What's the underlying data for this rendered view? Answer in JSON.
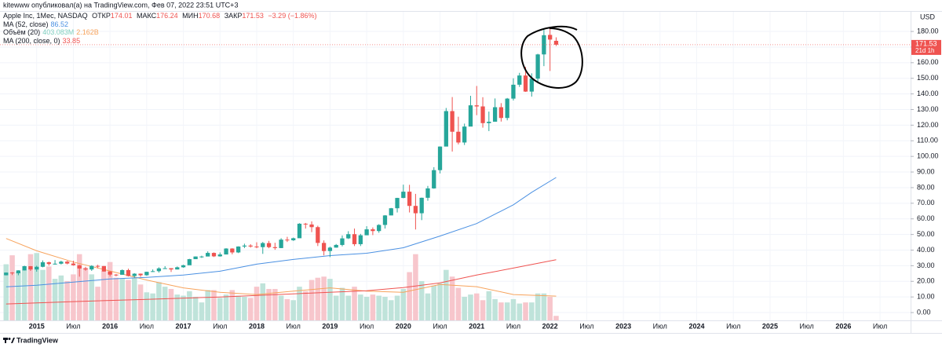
{
  "page": {
    "publisher": "kitewww опубликовал(а) на TradingView.com, Фев 07, 2022 23:51 UTC+3",
    "footer": "TradingView"
  },
  "chart_data": {
    "type": "candlestick",
    "title": "Apple Inc, 1Мес, NASDAQ",
    "ohlc_labels": [
      "ОТКР",
      "МАКС",
      "МИН",
      "ЗАКР"
    ],
    "change": "−3.29 (−1.86%)",
    "currency": "USD",
    "countdown": "21d 1h",
    "up_color": "#26a69a",
    "down_color": "#ef5350",
    "x": [
      "2014-08",
      "2014-09",
      "2014-10",
      "2014-11",
      "2014-12",
      "2015-01",
      "2015-02",
      "2015-03",
      "2015-04",
      "2015-05",
      "2015-06",
      "2015-07",
      "2015-08",
      "2015-09",
      "2015-10",
      "2015-11",
      "2015-12",
      "2016-01",
      "2016-02",
      "2016-03",
      "2016-04",
      "2016-05",
      "2016-06",
      "2016-07",
      "2016-08",
      "2016-09",
      "2016-10",
      "2016-11",
      "2016-12",
      "2017-01",
      "2017-02",
      "2017-03",
      "2017-04",
      "2017-05",
      "2017-06",
      "2017-07",
      "2017-08",
      "2017-09",
      "2017-10",
      "2017-11",
      "2017-12",
      "2018-01",
      "2018-02",
      "2018-03",
      "2018-04",
      "2018-05",
      "2018-06",
      "2018-07",
      "2018-08",
      "2018-09",
      "2018-10",
      "2018-11",
      "2018-12",
      "2019-01",
      "2019-02",
      "2019-03",
      "2019-04",
      "2019-05",
      "2019-06",
      "2019-07",
      "2019-08",
      "2019-09",
      "2019-10",
      "2019-11",
      "2019-12",
      "2020-01",
      "2020-02",
      "2020-03",
      "2020-04",
      "2020-05",
      "2020-06",
      "2020-07",
      "2020-08",
      "2020-09",
      "2020-10",
      "2020-11",
      "2020-12",
      "2021-01",
      "2021-02",
      "2021-03",
      "2021-04",
      "2021-05",
      "2021-06",
      "2021-07",
      "2021-08",
      "2021-09",
      "2021-10",
      "2021-11",
      "2021-12",
      "2022-01",
      "2022-02"
    ],
    "open": [
      23.9,
      25.6,
      25.2,
      27.0,
      29.7,
      27.6,
      29.3,
      32.2,
      31.1,
      31.3,
      32.6,
      31.4,
      30.3,
      28.2,
      27.6,
      29.9,
      29.8,
      26.3,
      24.3,
      24.2,
      27.2,
      23.4,
      24.9,
      23.9,
      26.1,
      26.5,
      28.3,
      28.4,
      27.6,
      29.0,
      30.3,
      34.2,
      35.9,
      35.9,
      38.2,
      36.0,
      37.2,
      41.0,
      38.5,
      42.3,
      42.9,
      42.3,
      41.9,
      44.5,
      41.9,
      41.3,
      46.7,
      46.3,
      47.6,
      56.9,
      56.4,
      54.7,
      44.6,
      39.4,
      41.6,
      43.3,
      47.5,
      50.2,
      43.8,
      49.5,
      53.3,
      52.2,
      56.1,
      62.2,
      66.8,
      73.4,
      77.4,
      68.3,
      63.6,
      73.5,
      79.5,
      91.2,
      106.3,
      129.0,
      115.8,
      108.9,
      119.1,
      132.7,
      132.0,
      121.3,
      122.2,
      131.5,
      124.6,
      137.0,
      145.9,
      151.8,
      141.5,
      149.8,
      165.3,
      177.8,
      174.01
    ],
    "high": [
      25.7,
      25.9,
      27.1,
      30.0,
      29.8,
      30.0,
      33.4,
      32.6,
      33.6,
      33.2,
      33.1,
      33.2,
      30.6,
      29.3,
      30.3,
      30.6,
      29.8,
      26.5,
      24.7,
      27.6,
      28.1,
      25.2,
      25.0,
      26.1,
      27.6,
      29.0,
      29.7,
      28.4,
      29.5,
      30.6,
      34.4,
      35.9,
      36.4,
      39.2,
      38.5,
      38.5,
      41.2,
      41.2,
      42.4,
      44.1,
      43.8,
      45.0,
      45.2,
      45.9,
      44.7,
      47.6,
      48.5,
      48.0,
      57.2,
      57.4,
      58.4,
      55.6,
      46.2,
      42.2,
      43.9,
      49.4,
      52.1,
      53.8,
      50.4,
      55.3,
      54.5,
      56.6,
      62.4,
      67.0,
      73.5,
      81.9,
      81.8,
      76.0,
      73.6,
      81.1,
      93.1,
      106.4,
      131.0,
      138.0,
      125.4,
      121.0,
      138.8,
      145.1,
      137.9,
      128.7,
      137.1,
      134.1,
      137.4,
      150.0,
      153.5,
      157.3,
      153.2,
      165.7,
      182.1,
      182.9,
      176.24
    ],
    "low": [
      23.8,
      24.0,
      23.9,
      26.9,
      26.7,
      26.2,
      29.0,
      30.1,
      30.7,
      30.8,
      30.9,
      30.0,
      23.0,
      26.8,
      26.7,
      28.4,
      26.2,
      23.1,
      23.2,
      24.2,
      23.1,
      22.4,
      22.9,
      23.6,
      26.0,
      25.6,
      28.0,
      26.0,
      27.6,
      28.7,
      31.9,
      34.6,
      35.0,
      36.1,
      35.6,
      35.8,
      37.4,
      37.3,
      38.1,
      41.3,
      41.6,
      41.2,
      37.6,
      41.2,
      40.2,
      41.3,
      45.2,
      45.9,
      49.3,
      53.8,
      51.5,
      42.6,
      36.6,
      35.5,
      41.5,
      42.4,
      47.1,
      42.6,
      42.6,
      49.7,
      49.6,
      51.1,
      53.8,
      62.3,
      64.1,
      73.2,
      64.1,
      53.2,
      59.2,
      71.6,
      79.3,
      89.1,
      107.9,
      103.1,
      107.7,
      107.3,
      120.0,
      126.4,
      118.4,
      116.2,
      122.5,
      122.3,
      123.1,
      135.8,
      144.5,
      141.3,
      138.3,
      147.5,
      157.8,
      154.7,
      170.68
    ],
    "close": [
      25.6,
      25.2,
      27.0,
      29.7,
      27.6,
      29.3,
      32.2,
      31.1,
      31.3,
      32.6,
      31.4,
      30.3,
      28.2,
      27.6,
      29.9,
      29.8,
      26.3,
      24.3,
      24.2,
      27.2,
      23.4,
      24.9,
      23.9,
      26.1,
      26.5,
      28.3,
      28.4,
      27.6,
      29.0,
      30.3,
      34.2,
      35.9,
      35.9,
      38.2,
      36.0,
      37.2,
      41.0,
      38.5,
      42.3,
      42.9,
      42.3,
      41.9,
      44.5,
      41.9,
      41.3,
      46.7,
      46.3,
      47.6,
      56.9,
      56.4,
      54.7,
      44.6,
      39.4,
      41.6,
      43.3,
      47.5,
      50.2,
      43.8,
      49.5,
      53.3,
      52.2,
      56.1,
      62.2,
      66.8,
      73.4,
      77.4,
      68.3,
      63.6,
      73.5,
      79.5,
      91.2,
      106.3,
      129.0,
      115.8,
      108.9,
      119.1,
      132.7,
      132.0,
      121.3,
      122.2,
      131.5,
      124.6,
      137.0,
      145.9,
      151.8,
      141.5,
      149.8,
      165.3,
      177.6,
      174.8,
      171.53
    ],
    "xlim": [
      "2014-07",
      "2026-12"
    ],
    "xticks": [
      {
        "value": "2015-01",
        "label": "2015"
      },
      {
        "value": "2015-07",
        "label": "Июл"
      },
      {
        "value": "2016-01",
        "label": "2016"
      },
      {
        "value": "2016-07",
        "label": "Июл"
      },
      {
        "value": "2017-01",
        "label": "2017"
      },
      {
        "value": "2017-07",
        "label": "Июл"
      },
      {
        "value": "2018-01",
        "label": "2018"
      },
      {
        "value": "2018-07",
        "label": "Июл"
      },
      {
        "value": "2019-01",
        "label": "2019"
      },
      {
        "value": "2019-07",
        "label": "Июл"
      },
      {
        "value": "2020-01",
        "label": "2020"
      },
      {
        "value": "2020-07",
        "label": "Июл"
      },
      {
        "value": "2021-01",
        "label": "2021"
      },
      {
        "value": "2021-07",
        "label": "Июл"
      },
      {
        "value": "2022-01",
        "label": "2022"
      },
      {
        "value": "2022-07",
        "label": "Июл"
      },
      {
        "value": "2023-01",
        "label": "2023"
      },
      {
        "value": "2023-07",
        "label": "Июл"
      },
      {
        "value": "2024-01",
        "label": "2024"
      },
      {
        "value": "2024-07",
        "label": "Июл"
      },
      {
        "value": "2025-01",
        "label": "2025"
      },
      {
        "value": "2025-07",
        "label": "Июл"
      },
      {
        "value": "2026-01",
        "label": "2026"
      },
      {
        "value": "2026-07",
        "label": "Июл"
      }
    ],
    "ylim": [
      -5,
      192.6
    ],
    "yticks": [
      {
        "value": 0,
        "label": "0.00"
      },
      {
        "value": 10,
        "label": "10.00"
      },
      {
        "value": 20,
        "label": "20.00"
      },
      {
        "value": 30,
        "label": "30.00"
      },
      {
        "value": 40,
        "label": "40.00"
      },
      {
        "value": 50,
        "label": "50.00"
      },
      {
        "value": 60,
        "label": "60.00"
      },
      {
        "value": 70,
        "label": "70.00"
      },
      {
        "value": 80,
        "label": "80.00"
      },
      {
        "value": 90,
        "label": "90.00"
      },
      {
        "value": 100,
        "label": "100.00"
      },
      {
        "value": 110,
        "label": "110.00"
      },
      {
        "value": 120,
        "label": "120.00"
      },
      {
        "value": 130,
        "label": "130.00"
      },
      {
        "value": 140,
        "label": "140.00"
      },
      {
        "value": 150,
        "label": "150.00"
      },
      {
        "value": 160,
        "label": "160.00"
      },
      {
        "value": 170,
        "label": "170.00"
      },
      {
        "value": 180,
        "label": "180.00"
      }
    ],
    "grid": true,
    "y2lim": [
      0,
      27.5
    ],
    "volume": {
      "name": "Объём (20)",
      "axis": "y2",
      "up_color": "#bfe3da",
      "down_color": "#f7c6cc",
      "values": [
        5.0,
        5.8,
        4.3,
        4.5,
        5.9,
        6.0,
        4.5,
        4.8,
        3.7,
        4.0,
        3.5,
        4.1,
        5.9,
        4.7,
        4.1,
        3.0,
        4.4,
        5.2,
        3.8,
        3.7,
        3.6,
        3.8,
        3.2,
        2.5,
        2.4,
        3.4,
        3.0,
        2.8,
        2.3,
        2.2,
        2.6,
        2.1,
        1.6,
        2.7,
        2.7,
        2.0,
        2.3,
        2.7,
        2.2,
        2.1,
        2.0,
        3.0,
        3.3,
        2.8,
        2.8,
        2.2,
        1.9,
        1.8,
        3.0,
        2.6,
        3.6,
        3.8,
        3.9,
        3.7,
        2.2,
        2.9,
        2.2,
        3.0,
        2.3,
        2.1,
        2.3,
        2.2,
        2.1,
        1.8,
        2.2,
        2.8,
        4.3,
        5.9,
        3.5,
        2.4,
        3.1,
        3.3,
        4.5,
        3.9,
        2.9,
        2.1,
        2.3,
        2.4,
        1.8,
        2.6,
        1.9,
        1.6,
        1.6,
        1.9,
        1.5,
        1.6,
        1.6,
        2.4,
        2.4,
        2.1,
        0.403083
      ],
      "last_label": "403.083M",
      "ma": {
        "color": "#f7a35c",
        "x": [
          "2014-08",
          "2015-01",
          "2015-07",
          "2016-01",
          "2016-07",
          "2017-01",
          "2017-07",
          "2018-01",
          "2018-07",
          "2019-01",
          "2019-07",
          "2020-01",
          "2020-07",
          "2021-01",
          "2021-07",
          "2022-02"
        ],
        "values": [
          7.3,
          6.2,
          5.2,
          4.4,
          3.6,
          2.9,
          2.5,
          2.3,
          2.6,
          2.9,
          2.6,
          2.5,
          3.2,
          3.0,
          2.3,
          2.162
        ],
        "last_label": "2.162B"
      }
    },
    "lines": [
      {
        "name": "MA (52, close)",
        "color": "#4a90e2",
        "x": [
          "2014-08",
          "2015-01",
          "2015-07",
          "2016-01",
          "2016-07",
          "2017-01",
          "2017-07",
          "2018-01",
          "2018-07",
          "2019-01",
          "2019-07",
          "2020-01",
          "2020-07",
          "2021-01",
          "2021-07",
          "2021-10",
          "2022-02"
        ],
        "values": [
          16.5,
          17.5,
          19.5,
          21.5,
          22.5,
          24,
          26.5,
          31,
          34,
          36.5,
          38,
          41.5,
          49,
          57,
          69,
          77,
          86.52
        ]
      },
      {
        "name": "MA (200, close, 0)",
        "color": "#ef5350",
        "x": [
          "2014-08",
          "2015-07",
          "2016-07",
          "2017-07",
          "2018-07",
          "2019-07",
          "2020-01",
          "2020-07",
          "2021-01",
          "2021-07",
          "2022-02"
        ],
        "values": [
          5.5,
          7,
          8.5,
          10,
          12,
          14,
          16,
          19,
          24,
          28.5,
          33.85
        ]
      }
    ]
  }
}
